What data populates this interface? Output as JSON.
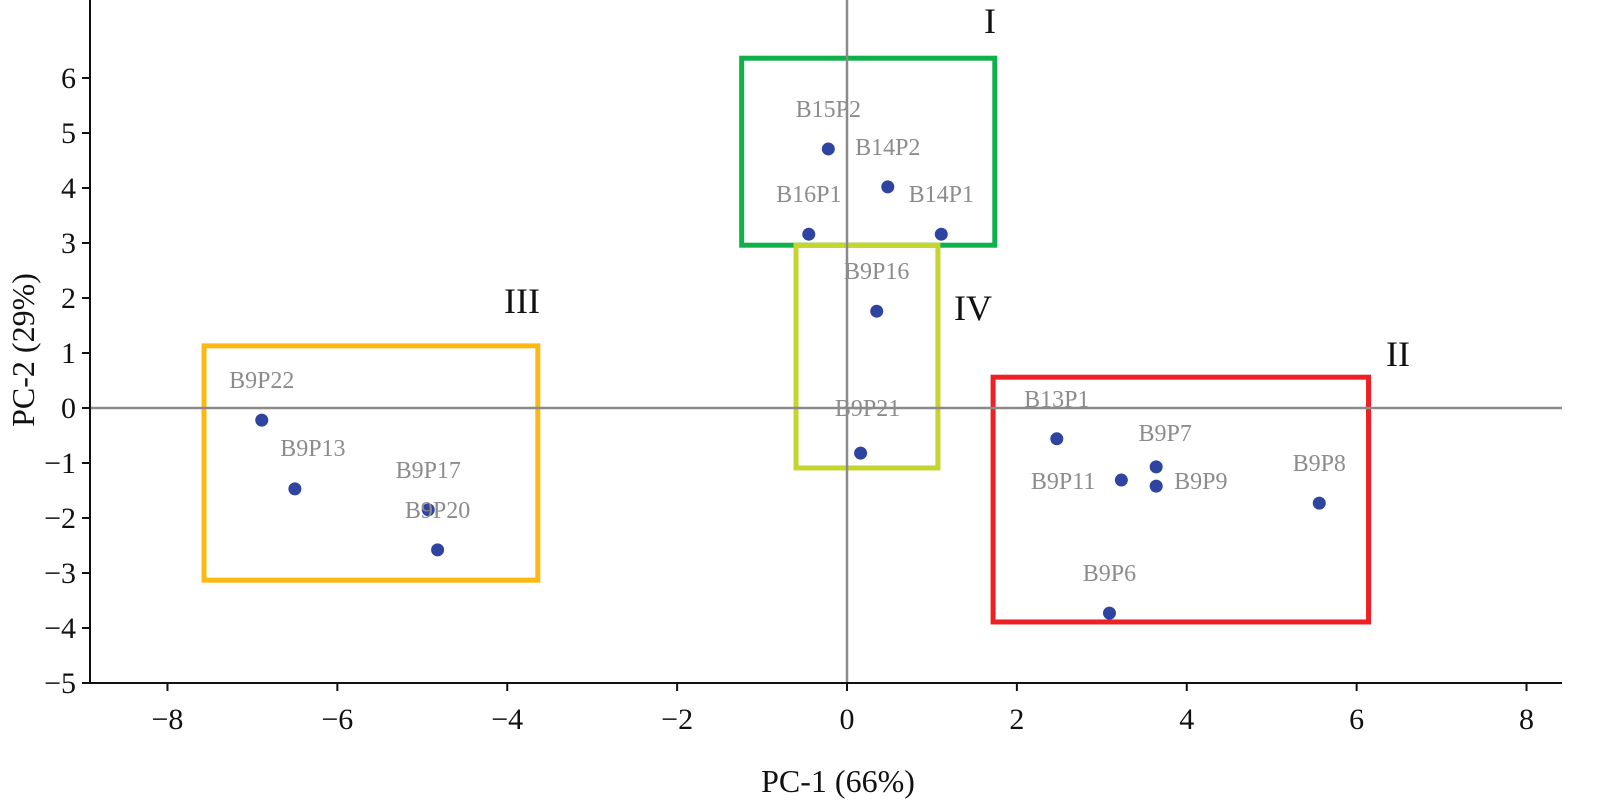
{
  "chart_data": {
    "type": "scatter",
    "xlabel": "PC-1 (66%)",
    "ylabel": "PC-2 (29%)",
    "xlim": [
      -8.9,
      8.4
    ],
    "ylim": [
      -5,
      6.9
    ],
    "xticks": [
      -8,
      -6,
      -4,
      -2,
      0,
      2,
      4,
      6,
      8
    ],
    "yticks": [
      -5,
      -4,
      -3,
      -2,
      -1,
      0,
      1,
      2,
      3,
      4,
      5,
      6
    ],
    "zero_lines": true,
    "grid": false,
    "point_color": "#2e44a0",
    "points": [
      {
        "label": "B15P2",
        "x": -0.22,
        "y": 4.71
      },
      {
        "label": "B14P2",
        "x": 0.48,
        "y": 4.02
      },
      {
        "label": "B16P1",
        "x": -0.45,
        "y": 3.16
      },
      {
        "label": "B14P1",
        "x": 1.11,
        "y": 3.16
      },
      {
        "label": "B9P16",
        "x": 0.35,
        "y": 1.76
      },
      {
        "label": "B9P21",
        "x": 0.16,
        "y": -0.82
      },
      {
        "label": "B9P22",
        "x": -6.89,
        "y": -0.22
      },
      {
        "label": "B9P13",
        "x": -6.5,
        "y": -1.47
      },
      {
        "label": "B9P17",
        "x": -4.93,
        "y": -1.85
      },
      {
        "label": "B9P20",
        "x": -4.82,
        "y": -2.58
      },
      {
        "label": "B13P1",
        "x": 2.47,
        "y": -0.56
      },
      {
        "label": "B9P7",
        "x": 3.64,
        "y": -1.07
      },
      {
        "label": "B9P11",
        "x": 3.23,
        "y": -1.31
      },
      {
        "label": "B9P9",
        "x": 3.64,
        "y": -1.42
      },
      {
        "label": "B9P8",
        "x": 5.56,
        "y": -1.73
      },
      {
        "label": "B9P6",
        "x": 3.09,
        "y": -3.73
      }
    ],
    "groups": [
      {
        "name": "I",
        "color": "#0fb04a",
        "x": [
          -1.24,
          1.74
        ],
        "y": [
          2.96,
          6.36
        ]
      },
      {
        "name": "II",
        "color": "#ee2024",
        "x": [
          1.72,
          6.14
        ],
        "y": [
          -3.89,
          0.56
        ]
      },
      {
        "name": "III",
        "color": "#fdb813",
        "x": [
          -7.57,
          -3.64
        ],
        "y": [
          -3.13,
          1.13
        ]
      },
      {
        "name": "IV",
        "color": "#c5d52f",
        "x": [
          -0.6,
          1.07
        ],
        "y": [
          -1.09,
          2.96
        ]
      }
    ]
  }
}
